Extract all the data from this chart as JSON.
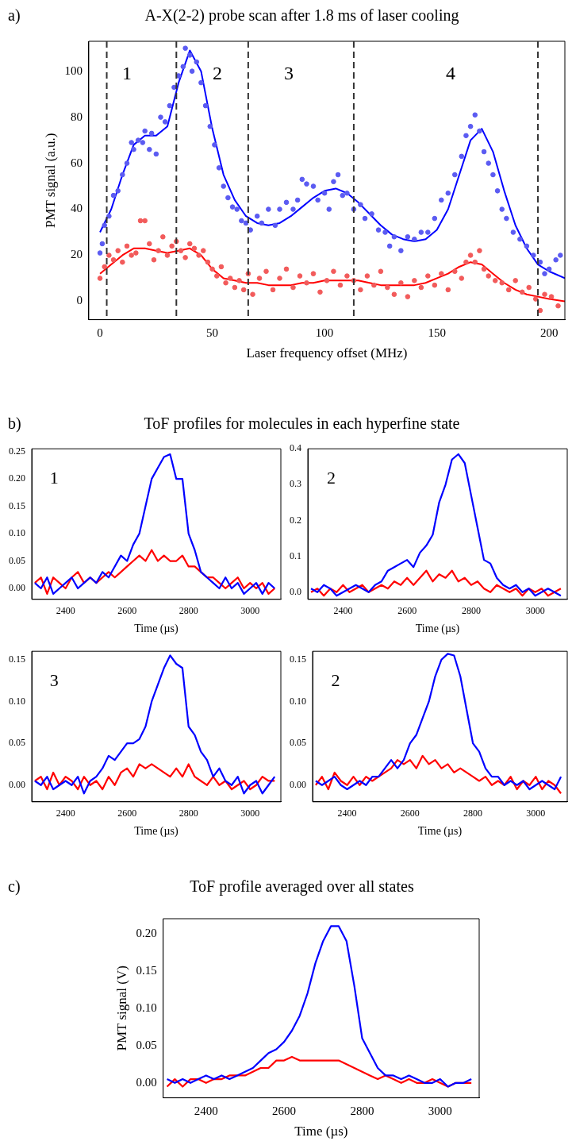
{
  "chart_data": [
    {
      "type": "scatter",
      "title": "A-X(2-2) probe scan after 1.8 ms of laser cooling",
      "xlabel": "Laser frequency offset (MHz)",
      "ylabel": "PMT signal (a.u.)",
      "xlim": [
        -5,
        207
      ],
      "ylim": [
        -8,
        113
      ],
      "xticks": [
        0,
        50,
        100,
        150,
        200
      ],
      "yticks": [
        0,
        20,
        40,
        60,
        80,
        100
      ],
      "grid": false,
      "annotations": [
        "a)",
        "1",
        "2",
        "3",
        "4"
      ],
      "ref_lines": [
        {
          "axis": "x",
          "value": 3,
          "color": "#333333",
          "line_style": "dashed"
        },
        {
          "axis": "x",
          "value": 34,
          "color": "#333333",
          "line_style": "dashed"
        },
        {
          "axis": "x",
          "value": 66,
          "color": "#333333",
          "line_style": "dashed"
        },
        {
          "axis": "x",
          "value": 113,
          "color": "#333333",
          "line_style": "dashed"
        },
        {
          "axis": "x",
          "value": 195,
          "color": "#333333",
          "line_style": "dashed"
        }
      ],
      "series": [
        {
          "type": "scatter",
          "marker": "circle",
          "color": "#5b5bf2",
          "x": [
            0,
            1,
            2,
            4,
            6,
            8,
            10,
            12,
            14,
            15,
            17,
            19,
            20,
            22,
            23,
            25,
            27,
            29,
            31,
            33,
            35,
            37,
            38,
            40,
            41,
            43,
            45,
            47,
            49,
            51,
            53,
            55,
            57,
            59,
            61,
            63,
            65,
            67,
            70,
            72,
            75,
            78,
            80,
            83,
            86,
            88,
            90,
            92,
            95,
            97,
            100,
            102,
            104,
            106,
            108,
            110,
            113,
            116,
            118,
            121,
            124,
            127,
            129,
            131,
            134,
            137,
            140,
            143,
            146,
            149,
            152,
            155,
            158,
            161,
            163,
            165,
            167,
            169,
            171,
            173,
            175,
            177,
            179,
            181,
            184,
            187,
            190,
            193,
            196,
            198,
            200,
            203,
            205
          ],
          "values": [
            21,
            25,
            33,
            37,
            46,
            48,
            55,
            60,
            69,
            66,
            70,
            69,
            74,
            66,
            73,
            64,
            80,
            78,
            85,
            93,
            98,
            102,
            110,
            107,
            100,
            104,
            95,
            85,
            76,
            68,
            58,
            50,
            45,
            41,
            40,
            35,
            34,
            31,
            37,
            34,
            40,
            33,
            40,
            43,
            40,
            44,
            53,
            51,
            50,
            44,
            47,
            40,
            52,
            55,
            46,
            47,
            40,
            42,
            36,
            38,
            31,
            30,
            24,
            28,
            22,
            28,
            27,
            30,
            30,
            36,
            44,
            47,
            55,
            63,
            72,
            76,
            81,
            74,
            65,
            60,
            55,
            48,
            40,
            36,
            30,
            27,
            24,
            20,
            17,
            12,
            14,
            18,
            20
          ]
        },
        {
          "type": "scatter",
          "marker": "circle",
          "color": "#f25b5b",
          "x": [
            0,
            2,
            4,
            6,
            8,
            10,
            12,
            14,
            16,
            18,
            20,
            22,
            24,
            26,
            28,
            30,
            32,
            34,
            36,
            38,
            40,
            42,
            44,
            46,
            48,
            50,
            52,
            54,
            56,
            58,
            60,
            62,
            64,
            66,
            68,
            71,
            74,
            77,
            80,
            83,
            86,
            89,
            92,
            95,
            98,
            101,
            104,
            107,
            110,
            113,
            116,
            119,
            122,
            125,
            128,
            131,
            134,
            137,
            140,
            143,
            146,
            149,
            152,
            155,
            158,
            161,
            163,
            165,
            167,
            169,
            171,
            173,
            176,
            179,
            182,
            185,
            188,
            191,
            194,
            196,
            198,
            201,
            204
          ],
          "values": [
            10,
            15,
            20,
            18,
            22,
            17,
            24,
            20,
            21,
            35,
            35,
            25,
            18,
            22,
            28,
            20,
            24,
            26,
            22,
            19,
            25,
            23,
            20,
            22,
            17,
            14,
            11,
            15,
            8,
            10,
            6,
            9,
            5,
            12,
            3,
            10,
            13,
            5,
            10,
            14,
            6,
            11,
            8,
            12,
            4,
            9,
            13,
            7,
            11,
            9,
            5,
            11,
            7,
            13,
            6,
            3,
            8,
            2,
            9,
            6,
            11,
            7,
            12,
            5,
            13,
            10,
            17,
            20,
            17,
            22,
            14,
            11,
            9,
            8,
            5,
            9,
            4,
            6,
            1,
            -4,
            3,
            2,
            -2
          ]
        },
        {
          "type": "line",
          "color": "#0000ff",
          "x": [
            0,
            5,
            10,
            15,
            20,
            25,
            30,
            35,
            40,
            45,
            50,
            55,
            60,
            65,
            70,
            75,
            80,
            85,
            90,
            95,
            100,
            105,
            110,
            115,
            120,
            125,
            130,
            135,
            140,
            145,
            150,
            155,
            160,
            165,
            170,
            175,
            180,
            185,
            190,
            195,
            200,
            207
          ],
          "values": [
            30,
            40,
            55,
            68,
            72,
            72,
            76,
            95,
            109,
            100,
            75,
            55,
            44,
            37,
            34,
            33,
            34,
            37,
            41,
            45,
            48,
            49,
            47,
            43,
            38,
            33,
            29,
            27,
            26,
            27,
            31,
            40,
            55,
            70,
            75,
            65,
            48,
            33,
            23,
            16,
            13,
            10
          ]
        },
        {
          "type": "line",
          "color": "#ff0000",
          "x": [
            0,
            5,
            10,
            15,
            20,
            25,
            30,
            35,
            40,
            45,
            50,
            55,
            60,
            65,
            70,
            75,
            80,
            85,
            90,
            95,
            100,
            105,
            110,
            115,
            120,
            125,
            130,
            135,
            140,
            145,
            150,
            155,
            160,
            165,
            170,
            175,
            180,
            185,
            190,
            195,
            200,
            207
          ],
          "values": [
            12,
            16,
            20,
            23,
            23,
            22,
            21,
            22,
            23,
            20,
            14,
            10,
            9,
            8,
            8,
            7,
            7,
            7,
            8,
            8,
            9,
            9,
            9,
            9,
            8,
            7,
            7,
            7,
            7,
            8,
            10,
            12,
            15,
            17,
            16,
            12,
            8,
            5,
            3,
            2,
            1,
            0
          ]
        }
      ]
    },
    {
      "type": "line",
      "title": "ToF profiles for molecules in each hyperfine state",
      "xlabel": "Time (µs)",
      "xlim": [
        2290,
        3100
      ],
      "ylim": [
        -0.02,
        0.255
      ],
      "xticks": [
        2400,
        2600,
        2800,
        3000
      ],
      "yticks": [
        {
          "value": 0,
          "label": "0.00"
        },
        0.05,
        {
          "value": 0.1,
          "label": "0.10"
        },
        0.15,
        {
          "value": 0.2,
          "label": "0.20"
        },
        0.25
      ],
      "grid": false,
      "annotations": [
        "b)",
        "1"
      ],
      "x": [
        2300,
        2320,
        2340,
        2360,
        2380,
        2400,
        2420,
        2440,
        2460,
        2480,
        2500,
        2520,
        2540,
        2560,
        2580,
        2600,
        2620,
        2640,
        2660,
        2680,
        2700,
        2720,
        2740,
        2760,
        2780,
        2800,
        2820,
        2840,
        2860,
        2880,
        2900,
        2920,
        2940,
        2960,
        2980,
        3000,
        3020,
        3040,
        3060,
        3080
      ],
      "series": [
        {
          "color": "#0000ff",
          "values": [
            0.01,
            0,
            0.02,
            -0.01,
            0,
            0.01,
            0.02,
            0,
            0.01,
            0.02,
            0.01,
            0.03,
            0.02,
            0.04,
            0.06,
            0.05,
            0.08,
            0.1,
            0.15,
            0.2,
            0.22,
            0.24,
            0.245,
            0.2,
            0.2,
            0.1,
            0.07,
            0.03,
            0.02,
            0.01,
            0,
            0.02,
            0,
            0.01,
            -0.01,
            0,
            0.01,
            -0.01,
            0.01,
            0
          ]
        },
        {
          "color": "#ff0000",
          "values": [
            0.01,
            0.02,
            -0.01,
            0.02,
            0.01,
            0,
            0.02,
            0.03,
            0.01,
            0.02,
            0.01,
            0.02,
            0.03,
            0.02,
            0.03,
            0.04,
            0.05,
            0.06,
            0.05,
            0.07,
            0.05,
            0.06,
            0.05,
            0.05,
            0.06,
            0.04,
            0.04,
            0.03,
            0.02,
            0.02,
            0.01,
            0,
            0.01,
            0.02,
            0,
            0.01,
            0,
            0.01,
            -0.01,
            0
          ]
        }
      ]
    },
    {
      "type": "line",
      "xlabel": "Time (µs)",
      "xlim": [
        2290,
        3100
      ],
      "ylim": [
        -0.02,
        0.4
      ],
      "xticks": [
        2400,
        2600,
        2800,
        3000
      ],
      "yticks": [
        {
          "value": 0,
          "label": "0.0"
        },
        0.1,
        0.2,
        0.3,
        0.4
      ],
      "grid": false,
      "annotations": [
        "2"
      ],
      "x": [
        2300,
        2320,
        2340,
        2360,
        2380,
        2400,
        2420,
        2440,
        2460,
        2480,
        2500,
        2520,
        2540,
        2560,
        2580,
        2600,
        2620,
        2640,
        2660,
        2680,
        2700,
        2720,
        2740,
        2760,
        2780,
        2800,
        2820,
        2840,
        2860,
        2880,
        2900,
        2920,
        2940,
        2960,
        2980,
        3000,
        3020,
        3040,
        3060,
        3080
      ],
      "series": [
        {
          "color": "#0000ff",
          "values": [
            0.01,
            0,
            0.02,
            0.01,
            -0.01,
            0,
            0.01,
            0.02,
            0.01,
            0,
            0.02,
            0.03,
            0.06,
            0.07,
            0.08,
            0.09,
            0.07,
            0.11,
            0.13,
            0.16,
            0.25,
            0.3,
            0.37,
            0.385,
            0.36,
            0.27,
            0.18,
            0.09,
            0.08,
            0.04,
            0.02,
            0.01,
            0.02,
            0,
            0.01,
            -0.01,
            0,
            0.01,
            0,
            -0.01
          ]
        },
        {
          "color": "#ff0000",
          "values": [
            0,
            0.01,
            -0.01,
            0.01,
            0,
            0.02,
            0,
            0.01,
            0.02,
            0,
            0.01,
            0.02,
            0.01,
            0.03,
            0.02,
            0.04,
            0.02,
            0.04,
            0.06,
            0.03,
            0.05,
            0.04,
            0.06,
            0.03,
            0.04,
            0.02,
            0.03,
            0.01,
            0,
            0.02,
            0.01,
            0,
            0.01,
            -0.01,
            0.01,
            0,
            0.01,
            -0.01,
            0,
            0.01
          ]
        }
      ]
    },
    {
      "type": "line",
      "xlabel": "Time (µs)",
      "xlim": [
        2290,
        3100
      ],
      "ylim": [
        -0.02,
        0.16
      ],
      "xticks": [
        2400,
        2600,
        2800,
        3000
      ],
      "yticks": [
        {
          "value": 0,
          "label": "0.00"
        },
        0.05,
        {
          "value": 0.1,
          "label": "0.10"
        },
        0.15
      ],
      "grid": false,
      "annotations": [
        "3"
      ],
      "x": [
        2300,
        2320,
        2340,
        2360,
        2380,
        2400,
        2420,
        2440,
        2460,
        2480,
        2500,
        2520,
        2540,
        2560,
        2580,
        2600,
        2620,
        2640,
        2660,
        2680,
        2700,
        2720,
        2740,
        2760,
        2780,
        2800,
        2820,
        2840,
        2860,
        2880,
        2900,
        2920,
        2940,
        2960,
        2980,
        3000,
        3020,
        3040,
        3060,
        3080
      ],
      "series": [
        {
          "color": "#0000ff",
          "values": [
            0.005,
            0,
            0.01,
            -0.005,
            0,
            0.005,
            0,
            0.01,
            -0.01,
            0.005,
            0.01,
            0.02,
            0.035,
            0.03,
            0.04,
            0.05,
            0.05,
            0.055,
            0.07,
            0.1,
            0.12,
            0.14,
            0.155,
            0.145,
            0.14,
            0.07,
            0.06,
            0.04,
            0.03,
            0.01,
            0.02,
            0.005,
            0,
            0.01,
            -0.01,
            0,
            0.005,
            -0.01,
            0,
            0.01
          ]
        },
        {
          "color": "#ff0000",
          "values": [
            0.005,
            0.01,
            -0.005,
            0.015,
            0,
            0.01,
            0.005,
            -0.005,
            0.01,
            0,
            0.005,
            -0.005,
            0.01,
            0,
            0.015,
            0.02,
            0.01,
            0.025,
            0.02,
            0.025,
            0.02,
            0.015,
            0.01,
            0.02,
            0.01,
            0.025,
            0.01,
            0.005,
            0,
            0.01,
            0,
            0.005,
            -0.005,
            0,
            0.005,
            -0.005,
            0,
            0.01,
            0.005,
            0.005
          ]
        }
      ]
    },
    {
      "type": "line",
      "xlabel": "Time (µs)",
      "xlim": [
        2290,
        3100
      ],
      "ylim": [
        -0.02,
        0.16
      ],
      "xticks": [
        2400,
        2600,
        2800,
        3000
      ],
      "yticks": [
        {
          "value": 0,
          "label": "0.00"
        },
        0.05,
        {
          "value": 0.1,
          "label": "0.10"
        },
        0.15
      ],
      "grid": false,
      "annotations": [
        "2"
      ],
      "x": [
        2300,
        2320,
        2340,
        2360,
        2380,
        2400,
        2420,
        2440,
        2460,
        2480,
        2500,
        2520,
        2540,
        2560,
        2580,
        2600,
        2620,
        2640,
        2660,
        2680,
        2700,
        2720,
        2740,
        2760,
        2780,
        2800,
        2820,
        2840,
        2860,
        2880,
        2900,
        2920,
        2940,
        2960,
        2980,
        3000,
        3020,
        3040,
        3060,
        3080
      ],
      "series": [
        {
          "color": "#0000ff",
          "values": [
            0.005,
            0,
            0.005,
            0.01,
            0,
            -0.005,
            0,
            0.005,
            0,
            0.01,
            0.01,
            0.02,
            0.03,
            0.02,
            0.03,
            0.05,
            0.06,
            0.08,
            0.1,
            0.13,
            0.15,
            0.157,
            0.155,
            0.13,
            0.09,
            0.05,
            0.04,
            0.02,
            0.01,
            0.01,
            0,
            0.005,
            0,
            0.005,
            -0.005,
            0,
            0.005,
            0,
            -0.005,
            0.01
          ]
        },
        {
          "color": "#ff0000",
          "values": [
            0,
            0.01,
            -0.005,
            0.015,
            0.005,
            0,
            0.01,
            0,
            0.01,
            0.005,
            0.01,
            0.015,
            0.02,
            0.03,
            0.025,
            0.03,
            0.02,
            0.035,
            0.025,
            0.03,
            0.02,
            0.025,
            0.015,
            0.02,
            0.015,
            0.01,
            0.005,
            0.01,
            0,
            0.005,
            0,
            0.01,
            -0.005,
            0.005,
            0,
            0.01,
            -0.005,
            0.005,
            0,
            -0.01
          ]
        }
      ]
    },
    {
      "type": "line",
      "title": "ToF profile averaged over all states",
      "xlabel": "Time (µs)",
      "ylabel": "PMT signal (V)",
      "xlim": [
        2290,
        3100
      ],
      "ylim": [
        -0.02,
        0.22
      ],
      "xticks": [
        2400,
        2600,
        2800,
        3000
      ],
      "yticks": [
        {
          "value": 0,
          "label": "0.00"
        },
        0.05,
        {
          "value": 0.1,
          "label": "0.10"
        },
        0.15,
        {
          "value": 0.2,
          "label": "0.20"
        }
      ],
      "grid": false,
      "annotations": [
        "c)"
      ],
      "x": [
        2300,
        2320,
        2340,
        2360,
        2380,
        2400,
        2420,
        2440,
        2460,
        2480,
        2500,
        2520,
        2540,
        2560,
        2580,
        2600,
        2620,
        2640,
        2660,
        2680,
        2700,
        2720,
        2740,
        2760,
        2780,
        2800,
        2820,
        2840,
        2860,
        2880,
        2900,
        2920,
        2940,
        2960,
        2980,
        3000,
        3020,
        3040,
        3060,
        3080
      ],
      "series": [
        {
          "color": "#0000ff",
          "values": [
            0.005,
            0,
            0.005,
            0,
            0.005,
            0.01,
            0.005,
            0.01,
            0.005,
            0.01,
            0.015,
            0.02,
            0.03,
            0.04,
            0.045,
            0.055,
            0.07,
            0.09,
            0.12,
            0.16,
            0.19,
            0.21,
            0.21,
            0.19,
            0.13,
            0.06,
            0.04,
            0.02,
            0.01,
            0.01,
            0.005,
            0.01,
            0.005,
            0,
            0,
            0.005,
            -0.005,
            0,
            0,
            0.005
          ]
        },
        {
          "color": "#ff0000",
          "values": [
            -0.005,
            0.005,
            -0.005,
            0.005,
            0.005,
            0,
            0.005,
            0.005,
            0.01,
            0.01,
            0.01,
            0.015,
            0.02,
            0.02,
            0.03,
            0.03,
            0.035,
            0.03,
            0.03,
            0.03,
            0.03,
            0.03,
            0.03,
            0.025,
            0.02,
            0.015,
            0.01,
            0.005,
            0.01,
            0.005,
            0,
            0.005,
            0,
            0,
            0.005,
            0,
            -0.005,
            0,
            0,
            0
          ]
        }
      ]
    }
  ]
}
